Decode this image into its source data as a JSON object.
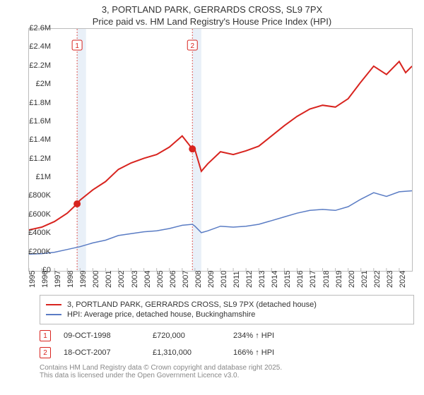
{
  "title": {
    "line1": "3, PORTLAND PARK, GERRARDS CROSS, SL9 7PX",
    "line2": "Price paid vs. HM Land Registry's House Price Index (HPI)"
  },
  "chart": {
    "type": "line",
    "background_color": "#ffffff",
    "border_color": "#bbbbbb",
    "grid_color": "#e0e0e0",
    "x": {
      "min": 1995,
      "max": 2025,
      "ticks": [
        1995,
        1996,
        1997,
        1998,
        1999,
        2000,
        2001,
        2002,
        2003,
        2004,
        2005,
        2006,
        2007,
        2008,
        2009,
        2010,
        2011,
        2012,
        2013,
        2014,
        2015,
        2016,
        2017,
        2018,
        2019,
        2020,
        2021,
        2022,
        2023,
        2024
      ],
      "tick_fontsize": 11
    },
    "y": {
      "min": 0,
      "max": 2600000,
      "ticks": [
        0,
        200000,
        400000,
        600000,
        800000,
        1000000,
        1200000,
        1400000,
        1600000,
        1800000,
        2000000,
        2200000,
        2400000,
        2600000
      ],
      "labels": [
        "£0",
        "£200K",
        "£400K",
        "£600K",
        "£800K",
        "£1M",
        "£1.2M",
        "£1.4M",
        "£1.6M",
        "£1.8M",
        "£2M",
        "£2.2M",
        "£2.4M",
        "£2.6M"
      ],
      "tick_fontsize": 11
    },
    "series": [
      {
        "name": "price_paid",
        "label": "3, PORTLAND PARK, GERRARDS CROSS, SL9 7PX (detached house)",
        "color": "#d8241f",
        "line_width": 2,
        "x": [
          1995,
          1996,
          1997,
          1998,
          1998.77,
          1999,
          2000,
          2001,
          2002,
          2003,
          2004,
          2005,
          2006,
          2007,
          2007.8,
          2008,
          2008.5,
          2009,
          2010,
          2011,
          2012,
          2013,
          2014,
          2015,
          2016,
          2017,
          2018,
          2019,
          2020,
          2021,
          2022,
          2023,
          2024,
          2024.5,
          2025
        ],
        "y": [
          440000,
          470000,
          530000,
          620000,
          720000,
          760000,
          870000,
          960000,
          1090000,
          1160000,
          1210000,
          1250000,
          1330000,
          1450000,
          1310000,
          1300000,
          1070000,
          1150000,
          1280000,
          1250000,
          1290000,
          1340000,
          1450000,
          1560000,
          1660000,
          1740000,
          1780000,
          1760000,
          1850000,
          2030000,
          2200000,
          2110000,
          2250000,
          2130000,
          2200000
        ]
      },
      {
        "name": "hpi",
        "label": "HPI: Average price, detached house, Buckinghamshire",
        "color": "#5a7cc4",
        "line_width": 1.5,
        "x": [
          1995,
          1996,
          1997,
          1998,
          1999,
          2000,
          2001,
          2002,
          2003,
          2004,
          2005,
          2006,
          2007,
          2007.8,
          2008,
          2008.5,
          2009,
          2010,
          2011,
          2012,
          2013,
          2014,
          2015,
          2016,
          2017,
          2018,
          2019,
          2020,
          2021,
          2022,
          2023,
          2024,
          2025
        ],
        "y": [
          180000,
          185000,
          200000,
          230000,
          260000,
          300000,
          330000,
          380000,
          400000,
          420000,
          430000,
          455000,
          490000,
          500000,
          480000,
          410000,
          430000,
          480000,
          470000,
          480000,
          500000,
          540000,
          580000,
          620000,
          650000,
          660000,
          650000,
          690000,
          770000,
          840000,
          800000,
          850000,
          860000
        ]
      }
    ],
    "markers": [
      {
        "x": 1998.77,
        "y": 720000,
        "color": "#d8241f",
        "size": 5
      },
      {
        "x": 2007.8,
        "y": 1310000,
        "color": "#d8241f",
        "size": 5
      }
    ],
    "event_bands": [
      {
        "label": "1",
        "x": 1998.77,
        "band_width_years": 0.7,
        "line_color": "#e05a55",
        "line_dash": "2,2",
        "band_color": "#e9f0f8",
        "badge_border": "#d8241f",
        "badge_bg": "#ffffff",
        "badge_text_color": "#d8241f"
      },
      {
        "label": "2",
        "x": 2007.8,
        "band_width_years": 0.7,
        "line_color": "#e05a55",
        "line_dash": "2,2",
        "band_color": "#e9f0f8",
        "badge_border": "#d8241f",
        "badge_bg": "#ffffff",
        "badge_text_color": "#d8241f"
      }
    ]
  },
  "legend": {
    "rows": [
      {
        "color": "#d8241f",
        "label": "3, PORTLAND PARK, GERRARDS CROSS, SL9 7PX (detached house)"
      },
      {
        "color": "#5a7cc4",
        "label": "HPI: Average price, detached house, Buckinghamshire"
      }
    ]
  },
  "events": [
    {
      "badge": "1",
      "badge_border": "#d8241f",
      "badge_text_color": "#d8241f",
      "date": "09-OCT-1998",
      "price": "£720,000",
      "delta": "234% ↑ HPI"
    },
    {
      "badge": "2",
      "badge_border": "#d8241f",
      "badge_text_color": "#d8241f",
      "date": "18-OCT-2007",
      "price": "£1,310,000",
      "delta": "166% ↑ HPI"
    }
  ],
  "footer": {
    "line1": "Contains HM Land Registry data © Crown copyright and database right 2025.",
    "line2": "This data is licensed under the Open Government Licence v3.0."
  }
}
